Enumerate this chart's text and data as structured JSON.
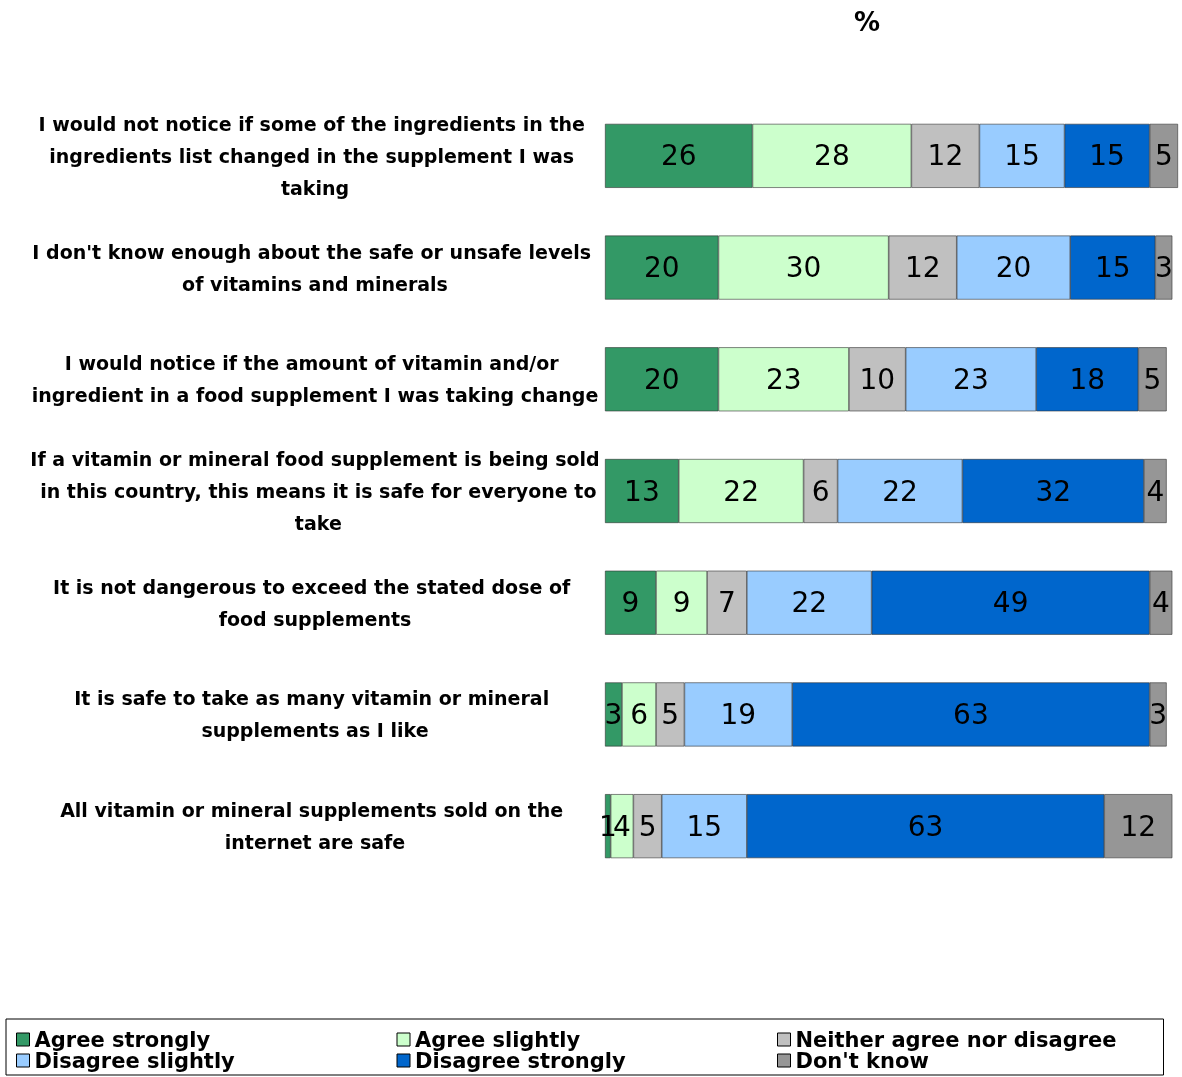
{
  "chart_data": {
    "type": "bar",
    "orientation": "horizontal",
    "stacked": true,
    "title": "%",
    "data_labels": true,
    "legend": "bottom",
    "categories": [
      "I would not notice if some of the ingredients in the ingredients list changed in the supplement I was taking",
      "I don't know enough about the safe or unsafe levels of vitamins and minerals",
      "I would notice if the amount of vitamin and/or ingredient in a food supplement I was taking change",
      "If a vitamin or mineral food supplement is being sold in this country, this means it is safe for everyone to take",
      "It is not dangerous to exceed the stated dose of food supplements",
      "It is safe to take as many vitamin or mineral supplements as I like",
      "All vitamin or mineral supplements sold on the internet are safe"
    ],
    "series": [
      {
        "name": "Agree strongly",
        "color": "#339966",
        "values": [
          26,
          20,
          20,
          13,
          9,
          3,
          1
        ]
      },
      {
        "name": "Agree slightly",
        "color": "#ccffcc",
        "values": [
          28,
          30,
          23,
          22,
          9,
          6,
          4
        ]
      },
      {
        "name": "Neither agree nor disagree",
        "color": "#c0c0c0",
        "values": [
          12,
          12,
          10,
          6,
          7,
          5,
          5
        ]
      },
      {
        "name": "Disagree slightly",
        "color": "#99ccff",
        "values": [
          15,
          20,
          23,
          22,
          22,
          19,
          15
        ]
      },
      {
        "name": "Disagree strongly",
        "color": "#0066cc",
        "values": [
          15,
          15,
          18,
          32,
          49,
          63,
          63
        ]
      },
      {
        "name": "Don't know",
        "color": "#969696",
        "values": [
          5,
          3,
          5,
          4,
          4,
          3,
          12
        ]
      }
    ]
  }
}
